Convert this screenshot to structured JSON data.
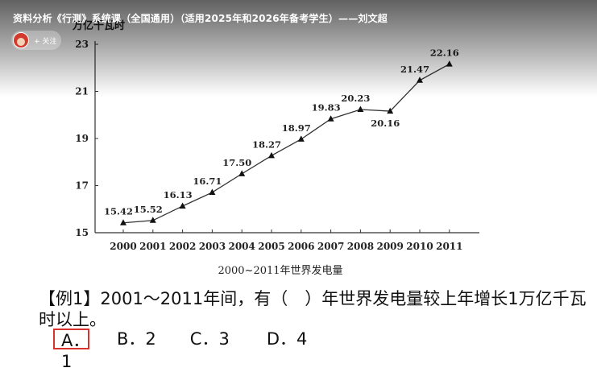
{
  "video": {
    "title": "资料分析《行测》系统课（全国通用）（适用2025年和2026年备考学生）——刘文超",
    "follow_label": "+ 关注"
  },
  "chart_data": {
    "type": "line",
    "title": "2000~2011年世界发电量",
    "ylabel": "万亿千瓦时",
    "xlabel": "",
    "x": [
      "2000",
      "2001",
      "2002",
      "2003",
      "2004",
      "2005",
      "2006",
      "2007",
      "2008",
      "2009",
      "2010",
      "2011"
    ],
    "values": [
      15.42,
      15.52,
      16.13,
      16.71,
      17.5,
      18.27,
      18.97,
      19.83,
      20.23,
      20.16,
      21.47,
      22.16
    ],
    "value_labels": [
      "15.42",
      "15.52",
      "16.13",
      "16.71",
      "17.50",
      "18.27",
      "18.97",
      "19.83",
      "20.23",
      "20.16",
      "21.47",
      "22.16"
    ],
    "ylim": [
      15,
      23
    ],
    "yticks": [
      "15",
      "17",
      "19",
      "21",
      "23"
    ],
    "marker": "triangle",
    "grid": false
  },
  "question": {
    "text": "【例1】2001～2011年间，有（　）年世界发电量较上年增长1万亿千瓦时以上。",
    "options": [
      "A．1",
      "B．2",
      "C．3",
      "D．4"
    ],
    "highlight_color": "#d9312b"
  }
}
